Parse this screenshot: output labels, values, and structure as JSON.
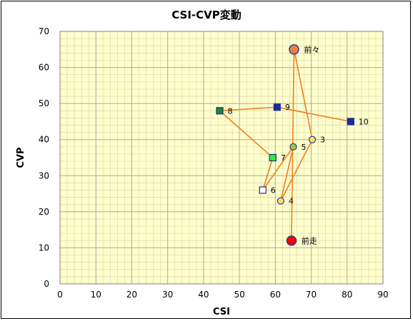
{
  "chart_data": {
    "type": "scatter",
    "title": "CSI-CVP変動",
    "xlabel": "CSI",
    "ylabel": "CVP",
    "xlim": [
      0,
      90
    ],
    "ylim": [
      0,
      70
    ],
    "x_ticks": [
      "0",
      "10",
      "20",
      "30",
      "40",
      "50",
      "60",
      "70",
      "80",
      "90"
    ],
    "y_ticks": [
      "0",
      "10",
      "20",
      "30",
      "40",
      "50",
      "60",
      "70"
    ],
    "grid": true,
    "plot_background": "#ffffcc",
    "grid_color": "#a9a9a9",
    "line_color": "#f08020",
    "points": [
      {
        "label": "前々",
        "x": 65.2,
        "y": 65,
        "marker": "circle-large",
        "fill": "#f08040",
        "stroke": "#2a3aa0"
      },
      {
        "label": "前走",
        "x": 64.5,
        "y": 12,
        "marker": "circle-large",
        "fill": "#ff0000",
        "stroke": "#2a3aa0"
      },
      {
        "label": "3",
        "x": 70.3,
        "y": 40,
        "marker": "circle",
        "fill": "#ffe066",
        "stroke": "#2a3aa0"
      },
      {
        "label": "4",
        "x": 61.5,
        "y": 23,
        "marker": "circle",
        "fill": "#ffe066",
        "stroke": "#2a3aa0"
      },
      {
        "label": "5",
        "x": 65.0,
        "y": 38,
        "marker": "circle",
        "fill": "#99cc33",
        "stroke": "#2a3aa0"
      },
      {
        "label": "6",
        "x": 56.5,
        "y": 26,
        "marker": "square",
        "fill": "#ffffff",
        "stroke": "#1a2a9a"
      },
      {
        "label": "7",
        "x": 59.3,
        "y": 35,
        "marker": "square",
        "fill": "#33ee33",
        "stroke": "#1a2a9a"
      },
      {
        "label": "8",
        "x": 44.5,
        "y": 48,
        "marker": "square",
        "fill": "#228822",
        "stroke": "#1a2a9a"
      },
      {
        "label": "9",
        "x": 60.5,
        "y": 49,
        "marker": "square",
        "fill": "#1a2a9a",
        "stroke": "#1a2a9a"
      },
      {
        "label": "10",
        "x": 81.0,
        "y": 45,
        "marker": "square",
        "fill": "#1a2a9a",
        "stroke": "#1a2a9a"
      }
    ],
    "path_order": [
      "前走",
      "前々",
      "3",
      "4",
      "5",
      "6",
      "7",
      "8",
      "9",
      "10"
    ]
  }
}
